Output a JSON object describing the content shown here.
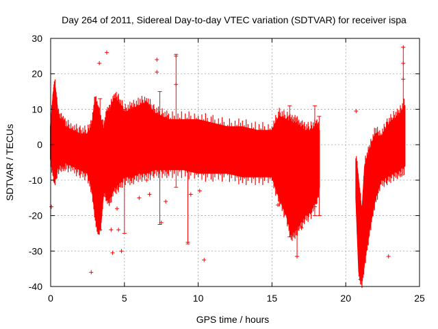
{
  "chart_data": {
    "type": "scatter",
    "title": "Day 264 of 2011, Sidereal Day-to-day VTEC variation (SDTVAR) for receiver ispa",
    "xlabel": "GPS time / hours",
    "ylabel": "SDTVAR / TECUs",
    "xlim": [
      0,
      25
    ],
    "ylim": [
      -40,
      30
    ],
    "xticks": [
      0,
      5,
      10,
      15,
      20,
      25
    ],
    "yticks": [
      -40,
      -30,
      -20,
      -10,
      0,
      10,
      20,
      30
    ],
    "xtick_labels": [
      "0",
      "5",
      "10",
      "15",
      "20",
      "25"
    ],
    "ytick_labels": [
      "-40",
      "-30",
      "-20",
      "-10",
      "0",
      "10",
      "20",
      "30"
    ],
    "grid": true,
    "marker": "+",
    "series": [
      {
        "name": "SDTVAR",
        "color": "#ff0000",
        "envelope": {
          "x": [
            0.0,
            0.2,
            0.3,
            0.5,
            0.8,
            1.0,
            1.5,
            2.0,
            2.5,
            2.8,
            3.0,
            3.2,
            3.4,
            3.6,
            3.8,
            4.0,
            4.3,
            4.6,
            5.0,
            5.5,
            6.0,
            6.5,
            7.0,
            7.5,
            8.0,
            9.0,
            10.0,
            11.0,
            12.0,
            13.0,
            14.0,
            15.0,
            15.5,
            16.0,
            16.3,
            16.6,
            16.9,
            17.2,
            17.6,
            18.0,
            18.2
          ],
          "upper": [
            5,
            15,
            16,
            8,
            6,
            5,
            4,
            3,
            3,
            5,
            12,
            10,
            6,
            4,
            8,
            9,
            13,
            12,
            9,
            10,
            11,
            12,
            9,
            8,
            7,
            7,
            7,
            6,
            5,
            5,
            4,
            4,
            8,
            7,
            6,
            6,
            5,
            4,
            4,
            5,
            4
          ],
          "lower": [
            -4,
            -8,
            -9,
            -6,
            -5,
            -5,
            -6,
            -7,
            -8,
            -12,
            -19,
            -24,
            -22,
            -12,
            -14,
            -15,
            -12,
            -11,
            -9,
            -9,
            -8,
            -8,
            -7,
            -7,
            -7,
            -7,
            -8,
            -8,
            -8,
            -9,
            -9,
            -9,
            -15,
            -20,
            -25,
            -24,
            -22,
            -20,
            -19,
            -15,
            -12
          ]
        },
        "envelope2": {
          "x": [
            20.7,
            20.9,
            21.1,
            21.3,
            21.6,
            22.0,
            22.4,
            22.8,
            23.2,
            23.6,
            24.0
          ],
          "upper": [
            -4,
            -12,
            -20,
            -6,
            -2,
            3,
            2,
            5,
            7,
            8,
            11
          ],
          "lower": [
            -15,
            -36,
            -38,
            -32,
            -24,
            -15,
            -10,
            -9,
            -8,
            -7,
            -6
          ]
        },
        "outliers": [
          {
            "x": 0.05,
            "y": -17.5
          },
          {
            "x": 0.2,
            "y": -10
          },
          {
            "x": 2.75,
            "y": -36
          },
          {
            "x": 3.3,
            "y": 23
          },
          {
            "x": 3.8,
            "y": 26
          },
          {
            "x": 4.1,
            "y": -24
          },
          {
            "x": 4.2,
            "y": -30.5
          },
          {
            "x": 4.5,
            "y": -18
          },
          {
            "x": 4.6,
            "y": -24
          },
          {
            "x": 4.8,
            "y": -30
          },
          {
            "x": 6.0,
            "y": -15
          },
          {
            "x": 6.5,
            "y": -10
          },
          {
            "x": 6.7,
            "y": -14
          },
          {
            "x": 7.2,
            "y": 24
          },
          {
            "x": 7.2,
            "y": 20.5
          },
          {
            "x": 7.5,
            "y": -22
          },
          {
            "x": 7.8,
            "y": -16
          },
          {
            "x": 8.5,
            "y": 17
          },
          {
            "x": 8.5,
            "y": 25
          },
          {
            "x": 9.3,
            "y": -27.5
          },
          {
            "x": 9.5,
            "y": -14
          },
          {
            "x": 10.1,
            "y": -13
          },
          {
            "x": 10.4,
            "y": -32.5
          },
          {
            "x": 15.4,
            "y": -17
          },
          {
            "x": 17.0,
            "y": -23.5
          },
          {
            "x": 17.6,
            "y": -17
          },
          {
            "x": 17.9,
            "y": -17.5
          },
          {
            "x": 20.7,
            "y": 9.5
          },
          {
            "x": 22.9,
            "y": -31.5
          },
          {
            "x": 23.9,
            "y": 23
          },
          {
            "x": 23.9,
            "y": 27.5
          },
          {
            "x": 23.9,
            "y": 18.5
          },
          {
            "x": 23.8,
            "y": -8.5
          },
          {
            "x": 16.7,
            "y": -31.5
          },
          {
            "x": 21.0,
            "y": -38
          }
        ],
        "error_bars": [
          {
            "x": 3.35,
            "low": -24,
            "high": 13
          },
          {
            "x": 5.0,
            "low": -25,
            "high": 10
          },
          {
            "x": 7.4,
            "low": -22.5,
            "high": 15
          },
          {
            "x": 8.5,
            "low": -12,
            "high": 25.5
          },
          {
            "x": 9.3,
            "low": -28,
            "high": 7
          },
          {
            "x": 16.2,
            "low": -26,
            "high": 11
          },
          {
            "x": 16.7,
            "low": -31.5,
            "high": 4
          },
          {
            "x": 17.9,
            "low": -20,
            "high": 11
          },
          {
            "x": 18.2,
            "low": -20,
            "high": 8
          },
          {
            "x": 23.9,
            "low": -5,
            "high": 27.5
          }
        ]
      }
    ]
  }
}
